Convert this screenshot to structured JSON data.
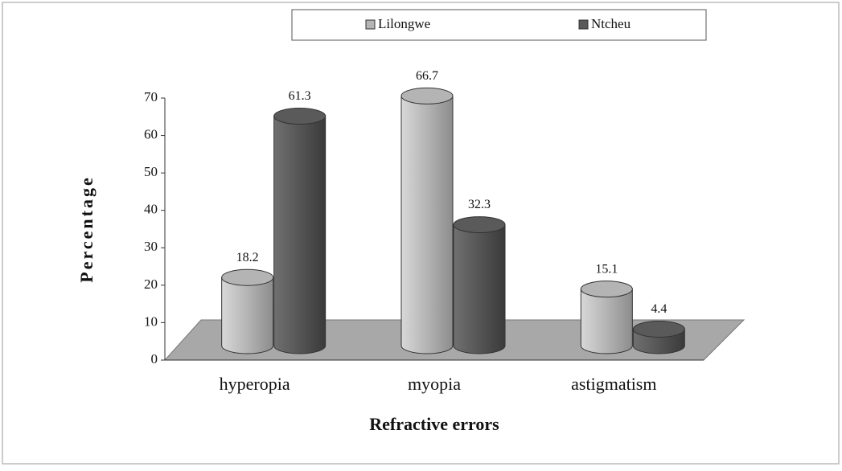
{
  "chart_data": {
    "type": "bar3d",
    "categories": [
      "hyperopia",
      "myopia",
      "astigmatism"
    ],
    "series": [
      {
        "name": "Lilongwe",
        "color": "#b4b4b4",
        "values": [
          18.2,
          66.7,
          15.1
        ]
      },
      {
        "name": "Ntcheu",
        "color": "#5a5a5a",
        "values": [
          61.3,
          32.3,
          4.4
        ]
      }
    ],
    "xlabel": "Refractive errors",
    "ylabel": "Percentage",
    "ylim": [
      0,
      70
    ],
    "yticks": [
      0,
      10,
      20,
      30,
      40,
      50,
      60,
      70
    ],
    "legend": "top"
  }
}
